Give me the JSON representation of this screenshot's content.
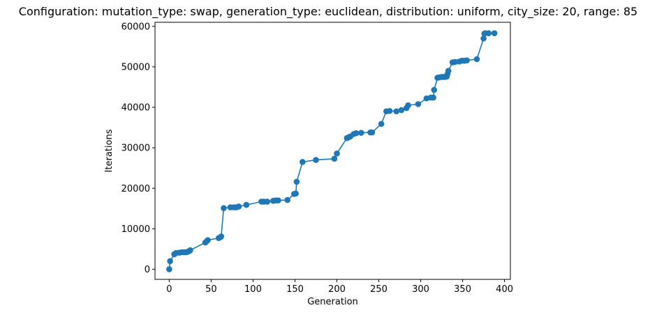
{
  "chart_data": {
    "type": "line",
    "title": "Configuration: mutation_type: swap, generation_type: euclidean, distribution: uniform, city_size: 20, range: 85",
    "xlabel": "Generation",
    "ylabel": "Iterations",
    "xlim": [
      -17,
      407
    ],
    "ylim": [
      -2500,
      61000
    ],
    "xticks": [
      0,
      50,
      100,
      150,
      200,
      250,
      300,
      350,
      400
    ],
    "yticks": [
      0,
      10000,
      20000,
      30000,
      40000,
      50000,
      60000
    ],
    "grid": false,
    "color": "#1f77b4",
    "series": [
      {
        "x": [
          0,
          1,
          6,
          8,
          12,
          15,
          18,
          20,
          22,
          24,
          25,
          43,
          45,
          46,
          59,
          61,
          62,
          65,
          73,
          77,
          80,
          83,
          92,
          110,
          113,
          117,
          124,
          127,
          130,
          141,
          149,
          151,
          152,
          159,
          175,
          197,
          200,
          212,
          214,
          216,
          220,
          223,
          229,
          240,
          242,
          253,
          259,
          263,
          271,
          277,
          283,
          285,
          297,
          307,
          312,
          315,
          316,
          320,
          322,
          325,
          327,
          329,
          331,
          332,
          333,
          338,
          341,
          346,
          349,
          352,
          355,
          367,
          375,
          376,
          377,
          381,
          388
        ],
        "y": [
          0,
          2000,
          3700,
          4000,
          4100,
          4200,
          4200,
          4200,
          4300,
          4500,
          4700,
          6600,
          7000,
          7200,
          7700,
          7900,
          8100,
          15100,
          15300,
          15300,
          15300,
          15500,
          15900,
          16700,
          16700,
          16700,
          16900,
          17000,
          17000,
          17100,
          18600,
          18700,
          21600,
          26500,
          27000,
          27300,
          28600,
          32400,
          32600,
          32800,
          33400,
          33600,
          33700,
          33800,
          33800,
          35900,
          39000,
          39100,
          39000,
          39300,
          39800,
          40500,
          40800,
          42200,
          42400,
          42400,
          44300,
          47300,
          47400,
          47500,
          47500,
          47500,
          47600,
          48200,
          49000,
          51100,
          51200,
          51300,
          51500,
          51500,
          51600,
          51900,
          57000,
          58200,
          58300,
          58300,
          58300
        ]
      }
    ]
  }
}
